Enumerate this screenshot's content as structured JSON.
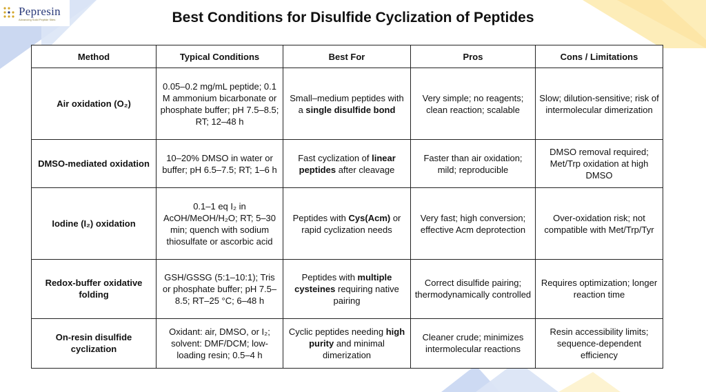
{
  "brand": {
    "name": "Pepresin",
    "tagline": "Advancing Solid Peptide Sites",
    "colors": {
      "primary": "#2a3a7a",
      "gold": "#d4a72c",
      "accent_blue": "#c5d4f0",
      "accent_yellow": "#fdecb5"
    }
  },
  "title": "Best Conditions for Disulfide Cyclization of Peptides",
  "table": {
    "headers": [
      "Method",
      "Typical Conditions",
      "Best For",
      "Pros",
      "Cons / Limitations"
    ],
    "rows": [
      {
        "method": "Air oxidation (O₂)",
        "conditions": "0.05–0.2 mg/mL peptide; 0.1 M ammonium bicarbonate or phosphate buffer; pH 7.5–8.5; RT; 12–48 h",
        "best_for": {
          "pre": "Small–medium peptides with a ",
          "hl": "single disulfide bond",
          "post": ""
        },
        "pros": "Very simple; no reagents; clean reaction; scalable",
        "cons": "Slow; dilution-sensitive; risk of intermolecular dimerization"
      },
      {
        "method": "DMSO-mediated oxidation",
        "conditions": "10–20% DMSO in water or buffer; pH 6.5–7.5; RT; 1–6 h",
        "best_for": {
          "pre": "Fast cyclization of ",
          "hl": "linear peptides",
          "post": " after cleavage"
        },
        "pros": "Faster than air oxidation; mild; reproducible",
        "cons": "DMSO removal required; Met/Trp oxidation at high DMSO"
      },
      {
        "method": "Iodine (I₂) oxidation",
        "conditions": "0.1–1 eq I₂ in AcOH/MeOH/H₂O; RT; 5–30 min; quench with sodium thiosulfate or ascorbic acid",
        "best_for": {
          "pre": "Peptides with ",
          "hl": "Cys(Acm)",
          "post": " or rapid cyclization needs"
        },
        "pros": "Very fast; high conversion; effective Acm deprotection",
        "cons": "Over-oxidation risk; not compatible with Met/Trp/Tyr"
      },
      {
        "method": "Redox-buffer oxidative folding",
        "conditions": "GSH/GSSG (5:1–10:1); Tris or phosphate buffer; pH 7.5–8.5; RT–25 °C; 6–48 h",
        "best_for": {
          "pre": "Peptides with ",
          "hl": "multiple cysteines",
          "post": " requiring native pairing"
        },
        "pros": "Correct disulfide pairing; thermodynamically controlled",
        "cons": "Requires optimization; longer reaction time"
      },
      {
        "method": "On-resin disulfide cyclization",
        "conditions": "Oxidant: air, DMSO, or I₂; solvent: DMF/DCM; low-loading resin; 0.5–4 h",
        "best_for": {
          "pre": "Cyclic peptides needing ",
          "hl": "high purity",
          "post": " and minimal dimerization"
        },
        "pros": "Cleaner crude; minimizes intermolecular reactions",
        "cons": "Resin accessibility limits; sequence-dependent efficiency"
      }
    ]
  }
}
